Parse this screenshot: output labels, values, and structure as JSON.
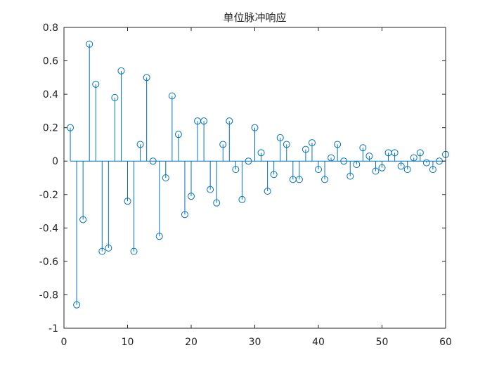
{
  "chart_data": {
    "type": "stem",
    "title": "单位脉冲响应",
    "xlabel": "",
    "ylabel": "",
    "xlim": [
      0,
      60
    ],
    "ylim": [
      -1,
      0.8
    ],
    "xticks": [
      0,
      10,
      20,
      30,
      40,
      50,
      60
    ],
    "yticks": [
      -1,
      -0.8,
      -0.6,
      -0.4,
      -0.2,
      0,
      0.2,
      0.4,
      0.6,
      0.8
    ],
    "xtick_labels": [
      "0",
      "10",
      "20",
      "30",
      "40",
      "50",
      "60"
    ],
    "ytick_labels": [
      "-1",
      "-0.8",
      "-0.6",
      "-0.4",
      "-0.2",
      "0",
      "0.2",
      "0.4",
      "0.6",
      "0.8"
    ],
    "grid": false,
    "color": "#0072BD",
    "x": [
      1,
      2,
      3,
      4,
      5,
      6,
      7,
      8,
      9,
      10,
      11,
      12,
      13,
      14,
      15,
      16,
      17,
      18,
      19,
      20,
      21,
      22,
      23,
      24,
      25,
      26,
      27,
      28,
      29,
      30,
      31,
      32,
      33,
      34,
      35,
      36,
      37,
      38,
      39,
      40,
      41,
      42,
      43,
      44,
      45,
      46,
      47,
      48,
      49,
      50,
      51,
      52,
      53,
      54,
      55,
      56,
      57,
      58,
      59,
      60
    ],
    "y": [
      0.2,
      -0.86,
      -0.35,
      0.7,
      0.46,
      -0.54,
      -0.52,
      0.38,
      0.54,
      -0.24,
      -0.54,
      0.1,
      0.5,
      0.0,
      -0.45,
      -0.1,
      0.39,
      0.16,
      -0.32,
      -0.21,
      0.24,
      0.24,
      -0.17,
      -0.25,
      0.1,
      0.24,
      -0.05,
      -0.23,
      0.0,
      0.2,
      0.05,
      -0.18,
      -0.08,
      0.14,
      0.1,
      -0.11,
      -0.11,
      0.07,
      0.11,
      -0.05,
      -0.11,
      0.02,
      0.1,
      0.0,
      -0.09,
      -0.02,
      0.08,
      0.03,
      -0.06,
      -0.04,
      0.05,
      0.05,
      -0.03,
      -0.05,
      0.02,
      0.05,
      -0.01,
      -0.05,
      0.0,
      0.04
    ]
  }
}
